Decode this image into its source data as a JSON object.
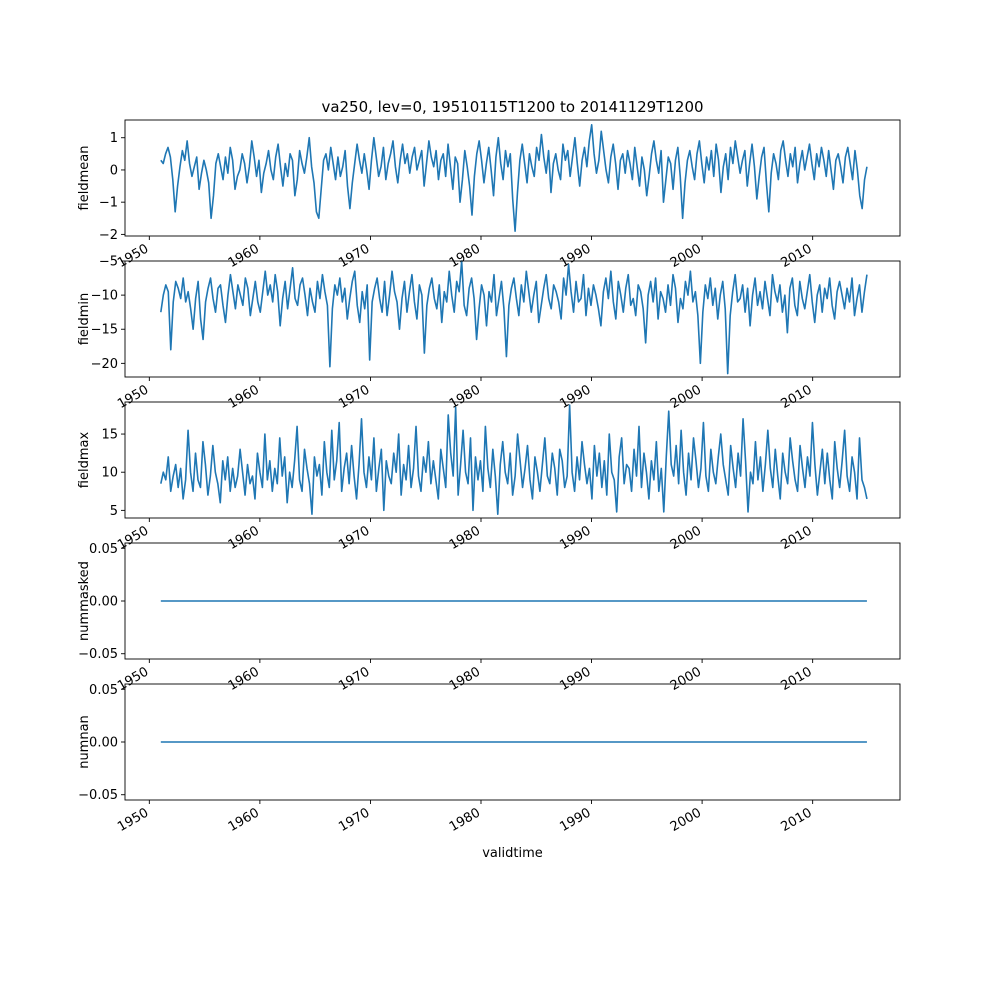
{
  "figure": {
    "title": "va250, lev=0, 19510115T1200 to 20141129T1200",
    "xlabel": "validtime"
  },
  "colors": {
    "series": "#1f77b4",
    "axis": "#000000",
    "background": "#ffffff"
  },
  "chart_data": [
    {
      "type": "line",
      "ylabel": "fieldmean",
      "x_tick_labels": [
        "1950",
        "1960",
        "1970",
        "1980",
        "1990",
        "2000",
        "2010"
      ],
      "x_ticks": [
        1950,
        1960,
        1970,
        1980,
        1990,
        2000,
        2010
      ],
      "xlim": [
        1947.8,
        2017.9
      ],
      "y_tick_labels": [
        "1",
        "0",
        "−1",
        "−2"
      ],
      "y_ticks": [
        1,
        0,
        -1,
        -2
      ],
      "ylim": [
        -2.05,
        1.55
      ],
      "x_start": 1951.04,
      "x_end": 2014.91,
      "series": [
        {
          "values": [
            0.3,
            0.2,
            0.5,
            0.7,
            0.4,
            -0.3,
            -1.3,
            -0.5,
            0.1,
            0.6,
            0.3,
            0.9,
            0.2,
            -0.2,
            0.1,
            0.4,
            -0.6,
            -0.1,
            0.3,
            0.0,
            -0.4,
            -1.5,
            -0.8,
            0.2,
            0.5,
            0.1,
            -0.3,
            0.4,
            -0.1,
            0.7,
            0.3,
            -0.6,
            -0.2,
            0.0,
            0.5,
            0.2,
            -0.4,
            0.1,
            0.9,
            0.4,
            -0.2,
            0.3,
            -0.7,
            -0.1,
            0.2,
            0.6,
            0.0,
            -0.3,
            0.4,
            0.8,
            0.1,
            -0.5,
            0.2,
            -0.2,
            0.5,
            0.3,
            -0.8,
            -0.3,
            0.6,
            0.2,
            -0.1,
            0.4,
            1.0,
            0.1,
            -0.4,
            -1.3,
            -1.5,
            -0.6,
            0.3,
            0.5,
            0.0,
            0.7,
            0.2,
            -0.3,
            0.4,
            -0.2,
            0.1,
            0.6,
            -0.5,
            -1.2,
            -0.4,
            0.2,
            0.8,
            0.3,
            -0.1,
            0.5,
            0.0,
            -0.6,
            0.3,
            1.0,
            0.4,
            -0.2,
            0.1,
            0.7,
            -0.3,
            0.2,
            0.5,
            0.9,
            0.1,
            -0.4,
            0.3,
            0.8,
            0.2,
            0.5,
            -0.1,
            0.4,
            0.7,
            0.0,
            0.3,
            0.6,
            -0.5,
            0.2,
            0.9,
            0.4,
            0.1,
            0.6,
            -0.3,
            0.3,
            0.5,
            -0.2,
            0.8,
            0.1,
            -0.6,
            0.4,
            0.2,
            -1.0,
            -0.3,
            0.6,
            0.1,
            -0.5,
            -1.4,
            -0.2,
            0.5,
            0.9,
            0.3,
            -0.4,
            0.2,
            0.7,
            0.0,
            -0.8,
            0.4,
            1.0,
            0.2,
            -0.3,
            0.6,
            0.1,
            0.5,
            -0.9,
            -1.9,
            -0.7,
            0.3,
            0.8,
            0.2,
            -0.4,
            0.5,
            0.1,
            -0.2,
            0.7,
            0.3,
            1.1,
            0.4,
            -0.1,
            0.6,
            -0.7,
            0.2,
            0.5,
            0.0,
            -0.3,
            0.8,
            0.3,
            0.6,
            -0.2,
            0.4,
            1.0,
            0.2,
            -0.5,
            0.3,
            0.7,
            0.1,
            0.9,
            1.4,
            0.5,
            -0.1,
            0.3,
            1.2,
            0.6,
            0.0,
            -0.4,
            0.4,
            0.8,
            0.2,
            -0.6,
            0.3,
            0.5,
            -0.1,
            0.6,
            0.2,
            -0.3,
            0.7,
            0.1,
            -0.5,
            0.4,
            0.0,
            -0.8,
            -0.2,
            0.5,
            0.9,
            0.3,
            -0.1,
            0.6,
            -1.0,
            -0.3,
            0.4,
            0.2,
            -0.6,
            0.3,
            0.7,
            -0.2,
            -1.5,
            -0.4,
            0.3,
            0.6,
            0.1,
            -0.3,
            0.5,
            0.9,
            0.2,
            -0.4,
            0.4,
            0.0,
            0.6,
            -0.2,
            0.8,
            0.3,
            -0.7,
            0.1,
            0.5,
            -0.3,
            0.7,
            0.2,
            0.9,
            0.4,
            -0.1,
            0.3,
            0.6,
            -0.5,
            0.2,
            0.8,
            0.1,
            -0.9,
            -0.2,
            0.4,
            0.7,
            -0.4,
            -1.3,
            -0.1,
            0.5,
            0.2,
            -0.3,
            0.6,
            0.9,
            0.3,
            -0.2,
            0.5,
            0.1,
            0.7,
            -0.4,
            0.2,
            0.6,
            0.0,
            0.4,
            0.8,
            0.2,
            -0.3,
            0.5,
            0.1,
            0.7,
            0.3,
            -0.2,
            0.6,
            0.0,
            -0.6,
            0.3,
            0.5,
            0.1,
            -0.4,
            0.4,
            0.7,
            0.2,
            -0.3,
            0.6,
            0.0,
            -0.8,
            -1.2,
            -0.3,
            0.1
          ]
        }
      ]
    },
    {
      "type": "line",
      "ylabel": "fieldmin",
      "x_tick_labels": [
        "1950",
        "1960",
        "1970",
        "1980",
        "1990",
        "2000",
        "2010"
      ],
      "x_ticks": [
        1950,
        1960,
        1970,
        1980,
        1990,
        2000,
        2010
      ],
      "xlim": [
        1947.8,
        2017.9
      ],
      "y_tick_labels": [
        "−5",
        "−10",
        "−15",
        "−20"
      ],
      "y_ticks": [
        -5,
        -10,
        -15,
        -20
      ],
      "ylim": [
        -22.0,
        -5.0
      ],
      "x_start": 1951.04,
      "x_end": 2014.91,
      "series": [
        {
          "values": [
            -12.5,
            -10.0,
            -8.5,
            -9.5,
            -18.0,
            -11.0,
            -8.0,
            -9.0,
            -10.5,
            -7.5,
            -11.0,
            -9.5,
            -12.0,
            -15.0,
            -10.5,
            -8.0,
            -13.5,
            -16.5,
            -11.0,
            -9.0,
            -7.5,
            -10.5,
            -12.5,
            -9.0,
            -8.5,
            -11.5,
            -14.0,
            -10.0,
            -7.0,
            -9.5,
            -12.0,
            -8.5,
            -10.0,
            -11.5,
            -7.5,
            -9.0,
            -13.0,
            -10.5,
            -8.0,
            -11.0,
            -12.5,
            -9.5,
            -6.5,
            -10.0,
            -8.5,
            -11.0,
            -7.0,
            -9.5,
            -14.5,
            -10.5,
            -8.0,
            -12.0,
            -9.0,
            -6.0,
            -10.5,
            -11.5,
            -8.5,
            -7.5,
            -10.0,
            -13.0,
            -9.0,
            -11.0,
            -12.5,
            -8.0,
            -10.5,
            -7.0,
            -9.5,
            -11.5,
            -20.5,
            -12.0,
            -8.5,
            -10.0,
            -7.5,
            -11.0,
            -9.0,
            -13.5,
            -10.5,
            -8.0,
            -6.5,
            -11.5,
            -14.0,
            -9.5,
            -12.0,
            -8.5,
            -19.5,
            -11.0,
            -9.0,
            -7.5,
            -10.5,
            -12.5,
            -8.0,
            -13.0,
            -10.0,
            -6.5,
            -9.5,
            -11.0,
            -15.0,
            -10.5,
            -8.0,
            -12.5,
            -9.5,
            -7.0,
            -11.0,
            -13.5,
            -8.5,
            -10.0,
            -18.5,
            -11.5,
            -9.0,
            -7.5,
            -10.5,
            -12.0,
            -8.5,
            -14.0,
            -9.5,
            -11.0,
            -6.5,
            -10.0,
            -12.5,
            -8.0,
            -9.5,
            -5.0,
            -11.5,
            -13.0,
            -9.0,
            -7.5,
            -10.5,
            -16.5,
            -12.0,
            -8.5,
            -10.0,
            -14.5,
            -9.5,
            -11.0,
            -7.0,
            -13.0,
            -10.5,
            -8.0,
            -12.0,
            -19.0,
            -11.5,
            -9.0,
            -7.5,
            -10.5,
            -13.0,
            -8.5,
            -11.0,
            -6.5,
            -9.5,
            -12.5,
            -10.0,
            -8.0,
            -14.0,
            -11.5,
            -9.0,
            -7.0,
            -10.5,
            -12.0,
            -8.5,
            -9.5,
            -11.0,
            -13.5,
            -7.5,
            -10.0,
            -5.5,
            -9.5,
            -12.5,
            -8.0,
            -11.0,
            -10.5,
            -7.0,
            -13.0,
            -9.0,
            -11.5,
            -8.5,
            -10.0,
            -12.0,
            -14.5,
            -9.5,
            -7.5,
            -10.5,
            -6.5,
            -11.0,
            -13.5,
            -8.0,
            -10.0,
            -12.5,
            -9.0,
            -7.0,
            -11.5,
            -10.5,
            -13.0,
            -8.5,
            -9.5,
            -12.0,
            -17.0,
            -10.0,
            -8.0,
            -11.0,
            -7.5,
            -13.5,
            -9.5,
            -10.5,
            -12.5,
            -8.5,
            -11.5,
            -7.0,
            -9.0,
            -14.0,
            -10.5,
            -12.0,
            -8.0,
            -10.0,
            -6.5,
            -11.0,
            -9.5,
            -13.0,
            -20.0,
            -12.5,
            -8.5,
            -10.5,
            -7.5,
            -11.5,
            -9.0,
            -13.5,
            -10.0,
            -8.0,
            -12.0,
            -21.5,
            -13.0,
            -9.5,
            -7.0,
            -11.0,
            -10.5,
            -8.5,
            -12.5,
            -9.0,
            -14.5,
            -10.0,
            -7.5,
            -11.5,
            -9.5,
            -12.0,
            -8.0,
            -10.5,
            -13.0,
            -7.0,
            -9.5,
            -11.0,
            -8.5,
            -12.5,
            -10.0,
            -15.5,
            -9.0,
            -7.5,
            -11.5,
            -13.0,
            -8.0,
            -10.5,
            -12.0,
            -9.5,
            -7.0,
            -11.0,
            -14.0,
            -10.0,
            -8.5,
            -12.5,
            -9.0,
            -10.5,
            -7.5,
            -11.5,
            -13.5,
            -9.5,
            -8.0,
            -10.0,
            -12.0,
            -9.0,
            -11.0,
            -7.5,
            -13.0,
            -10.5,
            -8.5,
            -12.5,
            -9.5,
            -7.0
          ]
        }
      ]
    },
    {
      "type": "line",
      "ylabel": "fieldmax",
      "x_tick_labels": [
        "1950",
        "1960",
        "1970",
        "1980",
        "1990",
        "2000",
        "2010"
      ],
      "x_ticks": [
        1950,
        1960,
        1970,
        1980,
        1990,
        2000,
        2010
      ],
      "xlim": [
        1947.8,
        2017.9
      ],
      "y_tick_labels": [
        "15",
        "10",
        "5"
      ],
      "y_ticks": [
        15,
        10,
        5
      ],
      "ylim": [
        4.0,
        19.2
      ],
      "x_start": 1951.04,
      "x_end": 2014.91,
      "series": [
        {
          "values": [
            8.5,
            10.0,
            9.0,
            12.0,
            7.5,
            9.5,
            11.0,
            8.0,
            10.5,
            6.5,
            9.0,
            15.5,
            10.0,
            7.5,
            12.5,
            9.0,
            8.0,
            14.0,
            11.0,
            7.0,
            9.5,
            13.5,
            10.0,
            8.5,
            6.0,
            11.5,
            9.0,
            12.0,
            7.5,
            10.5,
            8.0,
            9.5,
            13.0,
            10.0,
            7.0,
            11.0,
            8.5,
            9.5,
            6.5,
            12.5,
            10.0,
            8.0,
            15.0,
            9.0,
            11.5,
            7.5,
            10.5,
            8.5,
            14.5,
            9.5,
            12.0,
            6.0,
            10.0,
            8.0,
            11.5,
            16.0,
            9.0,
            7.5,
            13.0,
            10.5,
            8.5,
            4.5,
            12.0,
            9.5,
            11.0,
            7.0,
            14.0,
            10.0,
            8.0,
            15.5,
            9.0,
            11.5,
            16.5,
            7.5,
            10.5,
            12.5,
            8.5,
            13.5,
            9.5,
            6.5,
            11.0,
            17.0,
            10.0,
            8.0,
            12.0,
            9.0,
            14.5,
            7.5,
            10.5,
            13.0,
            5.0,
            11.5,
            9.5,
            8.5,
            12.5,
            10.0,
            15.0,
            7.0,
            11.0,
            9.0,
            13.5,
            8.0,
            10.5,
            16.0,
            9.5,
            7.5,
            12.0,
            10.0,
            14.0,
            8.5,
            11.5,
            9.0,
            6.5,
            13.0,
            10.5,
            8.0,
            17.5,
            12.5,
            9.5,
            18.5,
            7.0,
            11.0,
            15.5,
            10.0,
            8.5,
            14.5,
            5.0,
            12.0,
            9.0,
            11.5,
            7.5,
            16.0,
            10.5,
            8.0,
            13.0,
            9.5,
            4.5,
            11.0,
            14.0,
            10.0,
            8.5,
            12.5,
            7.0,
            9.5,
            15.0,
            11.5,
            8.0,
            10.5,
            13.5,
            9.0,
            6.5,
            12.0,
            10.0,
            7.5,
            11.0,
            14.5,
            9.5,
            8.5,
            12.5,
            10.5,
            7.0,
            13.0,
            11.5,
            8.0,
            9.5,
            18.8,
            10.0,
            7.5,
            12.0,
            9.0,
            14.0,
            11.0,
            8.5,
            10.5,
            6.5,
            13.5,
            9.5,
            12.5,
            8.0,
            11.5,
            7.0,
            15.0,
            10.0,
            9.0,
            4.8,
            12.0,
            14.5,
            8.5,
            11.0,
            10.5,
            7.5,
            13.0,
            9.5,
            16.0,
            8.0,
            12.5,
            10.0,
            6.5,
            11.5,
            9.0,
            14.0,
            7.5,
            10.5,
            4.8,
            12.0,
            18.0,
            11.0,
            9.5,
            13.5,
            8.5,
            15.5,
            10.0,
            7.0,
            12.5,
            9.0,
            14.5,
            11.5,
            8.0,
            10.5,
            16.5,
            9.5,
            7.5,
            13.0,
            10.0,
            8.5,
            12.0,
            15.0,
            11.0,
            9.0,
            7.0,
            13.5,
            10.5,
            8.0,
            12.5,
            9.5,
            17.0,
            11.5,
            4.8,
            10.0,
            8.5,
            14.0,
            9.0,
            12.0,
            7.5,
            11.0,
            15.5,
            10.5,
            8.0,
            13.0,
            9.5,
            6.5,
            12.5,
            10.0,
            8.5,
            14.5,
            11.5,
            9.0,
            7.5,
            13.5,
            10.5,
            8.0,
            12.0,
            9.5,
            16.5,
            11.0,
            7.0,
            10.0,
            13.0,
            8.5,
            12.5,
            9.0,
            6.5,
            14.0,
            10.5,
            8.0,
            11.5,
            15.5,
            9.5,
            7.5,
            12.0,
            10.0,
            6.5,
            14.5,
            9.0,
            8.0,
            6.5
          ]
        }
      ]
    },
    {
      "type": "line",
      "ylabel": "nummasked",
      "x_tick_labels": [
        "1950",
        "1960",
        "1970",
        "1980",
        "1990",
        "2000",
        "2010"
      ],
      "x_ticks": [
        1950,
        1960,
        1970,
        1980,
        1990,
        2000,
        2010
      ],
      "xlim": [
        1947.8,
        2017.9
      ],
      "y_tick_labels": [
        "0.05",
        "0.00",
        "−0.05"
      ],
      "y_ticks": [
        0.05,
        0.0,
        -0.05
      ],
      "ylim": [
        -0.055,
        0.055
      ],
      "series": [
        {
          "x": [
            1951.04,
            2014.91
          ],
          "values": [
            0.0,
            0.0
          ]
        }
      ]
    },
    {
      "type": "line",
      "ylabel": "numnan",
      "x_tick_labels": [
        "1950",
        "1960",
        "1970",
        "1980",
        "1990",
        "2000",
        "2010"
      ],
      "x_ticks": [
        1950,
        1960,
        1970,
        1980,
        1990,
        2000,
        2010
      ],
      "xlim": [
        1947.8,
        2017.9
      ],
      "y_tick_labels": [
        "0.05",
        "0.00",
        "−0.05"
      ],
      "y_ticks": [
        0.05,
        0.0,
        -0.05
      ],
      "ylim": [
        -0.055,
        0.055
      ],
      "series": [
        {
          "x": [
            1951.04,
            2014.91
          ],
          "values": [
            0.0,
            0.0
          ]
        }
      ]
    }
  ]
}
